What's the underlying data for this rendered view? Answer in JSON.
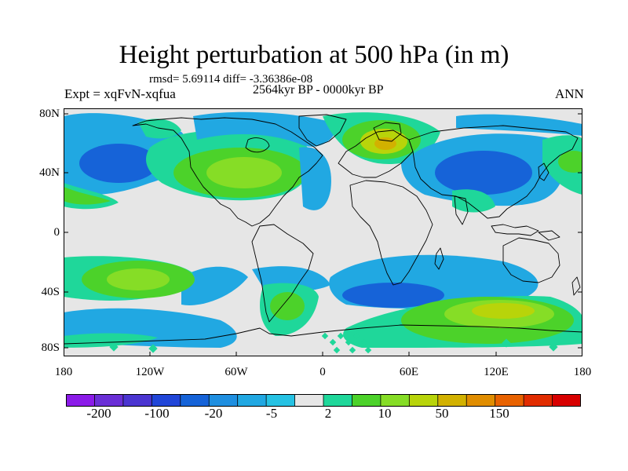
{
  "title": "Height perturbation at 500 hPa (in m)",
  "stats": "rmsd= 5.69114 diff= -3.36386e-08",
  "subtitle": "2564kyr BP - 0000kyr BP",
  "experiment": "Expt = xqFvN-xqfua",
  "season": "ANN",
  "lat_labels": [
    "80N",
    "40N",
    "0",
    "40S",
    "80S"
  ],
  "lon_labels": [
    "180",
    "120W",
    "60W",
    "0",
    "60E",
    "120E",
    "180"
  ],
  "colorbar": {
    "colors": [
      "#8b1be8",
      "#6a2fd6",
      "#4b35d1",
      "#2146d8",
      "#1663d8",
      "#1f8fe0",
      "#21a8e2",
      "#26c2e3",
      "#e6e6e6",
      "#1fd79a",
      "#4cd22a",
      "#86dd26",
      "#b8d40a",
      "#d2b100",
      "#e08d00",
      "#e86200",
      "#e12c00",
      "#d80000"
    ],
    "tick_labels": [
      "-200",
      "-100",
      "-20",
      "-5",
      "2",
      "10",
      "50",
      "150"
    ]
  },
  "palette": {
    "ocean_neutral": "#e6e6e6",
    "negative_light": "#21a8e2",
    "negative_dark": "#1663d8",
    "positive_light": "#1fd79a",
    "positive_mid": "#4cd22a",
    "positive_strong": "#b8d40a",
    "positive_peak": "#d2b100"
  }
}
